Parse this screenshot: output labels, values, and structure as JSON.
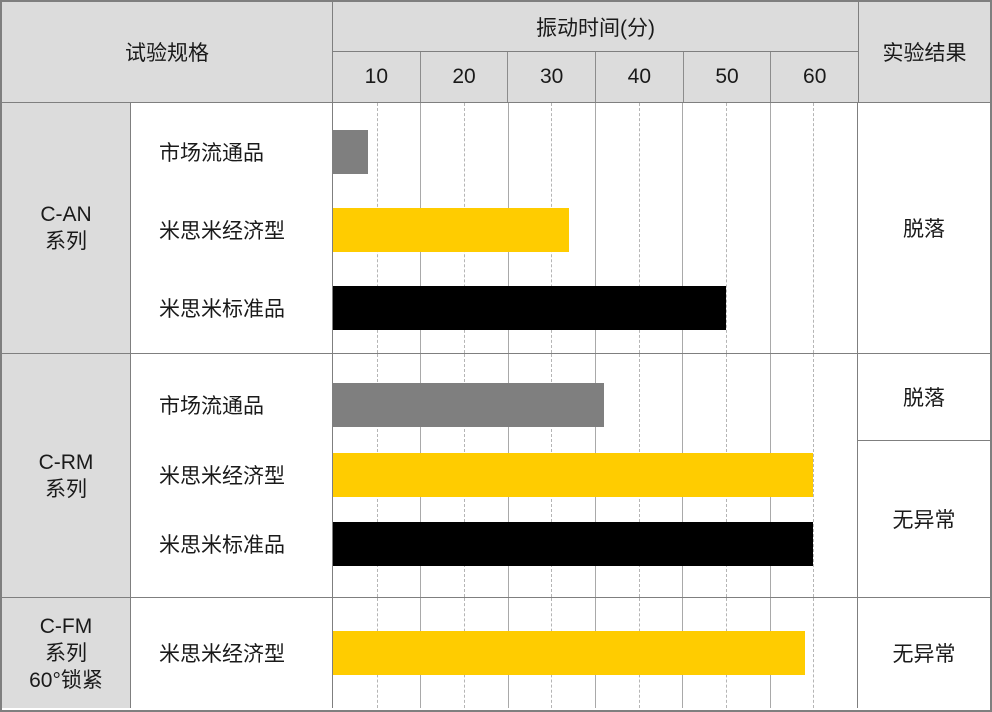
{
  "header": {
    "spec_label": "试验规格",
    "time_label": "振动时间(分)",
    "result_label": "实验结果",
    "ticks": [
      "10",
      "20",
      "30",
      "40",
      "50",
      "60"
    ]
  },
  "chart_data": {
    "type": "bar",
    "orientation": "horizontal",
    "x_axis_label": "振动时间(分)",
    "xlim": [
      5,
      65
    ],
    "xticks": [
      10,
      20,
      30,
      40,
      50,
      60
    ],
    "grid": "dashed vertical gridline at each tick value, solid light separators between tick cells",
    "bar_colors": {
      "市场流通品": "#7f7f7f",
      "米思米经济型": "#ffcc00",
      "米思米标准品": "#000000"
    },
    "groups": [
      {
        "series": "C-AN\n系列",
        "bars": [
          {
            "name": "市场流通品",
            "value": 9,
            "color": "#7f7f7f"
          },
          {
            "name": "米思米经济型",
            "value": 32,
            "color": "#ffcc00"
          },
          {
            "name": "米思米标准品",
            "value": 50,
            "color": "#000000"
          }
        ],
        "results": [
          {
            "label": "脱落",
            "rows": 3
          }
        ]
      },
      {
        "series": "C-RM\n系列",
        "bars": [
          {
            "name": "市场流通品",
            "value": 36,
            "color": "#7f7f7f"
          },
          {
            "name": "米思米经济型",
            "value": 60,
            "color": "#ffcc00"
          },
          {
            "name": "米思米标准品",
            "value": 60,
            "color": "#000000"
          }
        ],
        "results": [
          {
            "label": "脱落",
            "rows": 1
          },
          {
            "label": "无异常",
            "rows": 2
          }
        ]
      },
      {
        "series": "C-FM\n系列\n60°锁紧",
        "bars": [
          {
            "name": "米思米经济型",
            "value": 59,
            "color": "#ffcc00"
          }
        ],
        "results": [
          {
            "label": "无异常",
            "rows": 1
          }
        ]
      }
    ]
  },
  "colors": {
    "header_bg": "#dcdcdc",
    "border": "#7f7f7f",
    "grid_solid": "#a9a9a9",
    "grid_dashed": "#b5b5b5"
  }
}
